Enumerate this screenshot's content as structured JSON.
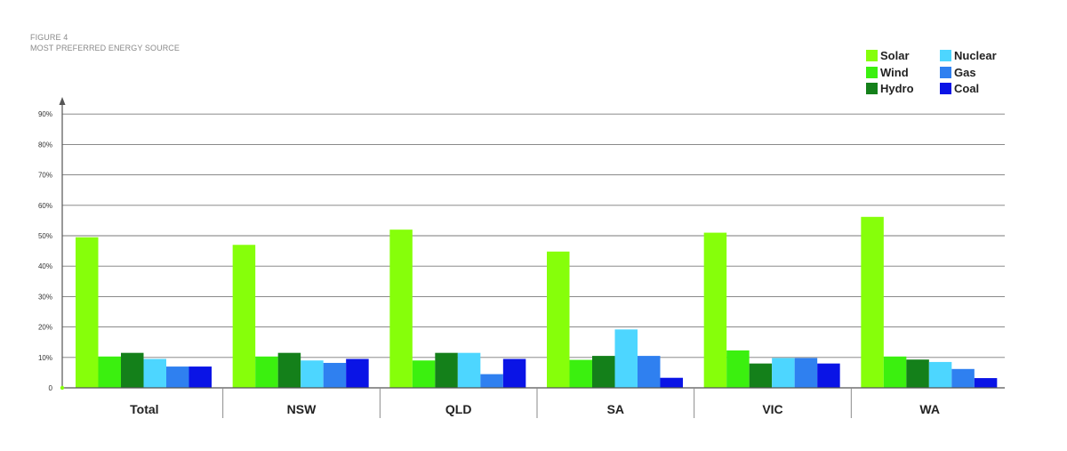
{
  "figure": {
    "number": "FIGURE 4",
    "title": "MOST PREFERRED ENERGY SOURCE"
  },
  "chart_data": {
    "type": "bar",
    "title": "MOST PREFERRED ENERGY SOURCE",
    "xlabel": "",
    "ylabel": "",
    "ylim": [
      0,
      90
    ],
    "y_ticks": [
      0,
      10,
      20,
      30,
      40,
      50,
      60,
      70,
      80,
      90
    ],
    "y_tick_labels": [
      "0",
      "10%",
      "20%",
      "30%",
      "40%",
      "50%",
      "60%",
      "70%",
      "80%",
      "90%"
    ],
    "grid": true,
    "legend_position": "top-right",
    "categories": [
      "Total",
      "NSW",
      "QLD",
      "SA",
      "VIC",
      "WA"
    ],
    "series": [
      {
        "name": "Solar",
        "color": "#86ff0a",
        "values": [
          49.5,
          47,
          52,
          44.8,
          51,
          56.2
        ]
      },
      {
        "name": "Wind",
        "color": "#3bf00f",
        "values": [
          10.3,
          10.3,
          9,
          9.2,
          12.3,
          10.3
        ]
      },
      {
        "name": "Hydro",
        "color": "#14801a",
        "values": [
          11.5,
          11.5,
          11.5,
          10.5,
          8,
          9.3
        ]
      },
      {
        "name": "Nuclear",
        "color": "#4dd6ff",
        "values": [
          9.5,
          9,
          11.5,
          19.2,
          9.8,
          8.5
        ]
      },
      {
        "name": "Gas",
        "color": "#2f80f0",
        "values": [
          7,
          8.2,
          4.5,
          10.5,
          9.8,
          6.2
        ]
      },
      {
        "name": "Coal",
        "color": "#0a14e6",
        "values": [
          7,
          9.5,
          9.5,
          3.3,
          8,
          3.2
        ]
      }
    ]
  }
}
